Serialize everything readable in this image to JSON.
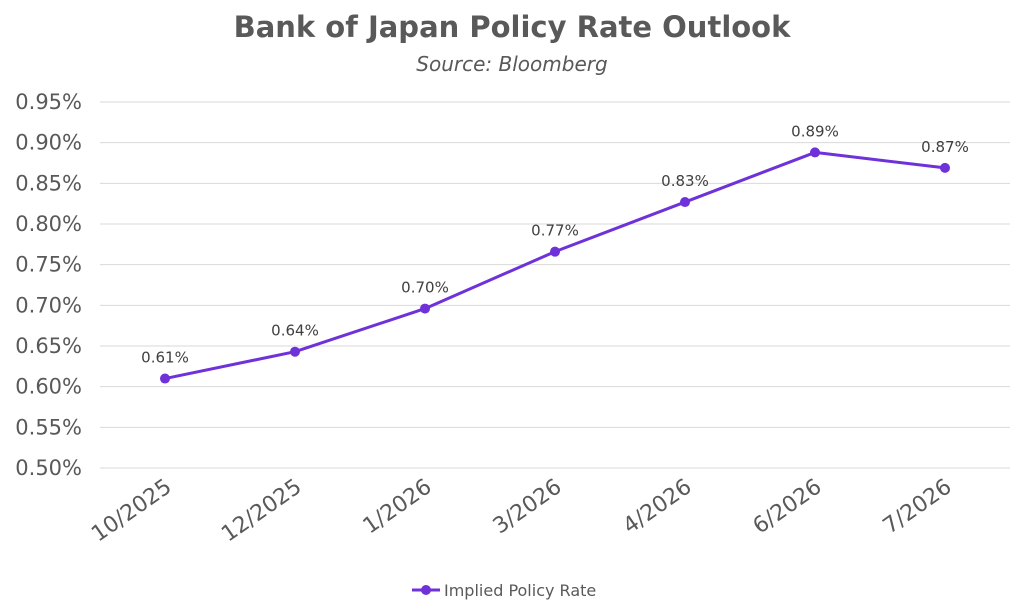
{
  "chart_data": {
    "type": "line",
    "title": "Bank of Japan Policy Rate Outlook",
    "subtitle": "Source: Bloomberg",
    "xlabel": "",
    "ylabel": "",
    "categories": [
      "10/2025",
      "12/2025",
      "1/2026",
      "3/2026",
      "4/2026",
      "6/2026",
      "7/2026"
    ],
    "series": [
      {
        "name": "Implied Policy Rate",
        "values": [
          0.61,
          0.643,
          0.696,
          0.766,
          0.827,
          0.888,
          0.869
        ],
        "labels": [
          "0.61%",
          "0.64%",
          "0.70%",
          "0.77%",
          "0.83%",
          "0.89%",
          "0.87%"
        ]
      }
    ],
    "ylim": [
      0.5,
      0.95
    ],
    "yticks": [
      "0.50%",
      "0.55%",
      "0.60%",
      "0.65%",
      "0.70%",
      "0.75%",
      "0.80%",
      "0.85%",
      "0.90%",
      "0.95%"
    ],
    "grid": true,
    "legend_position": "bottom",
    "colors": {
      "line": "#6e32d8",
      "grid": "#d9d9d9",
      "text": "#595959"
    }
  }
}
